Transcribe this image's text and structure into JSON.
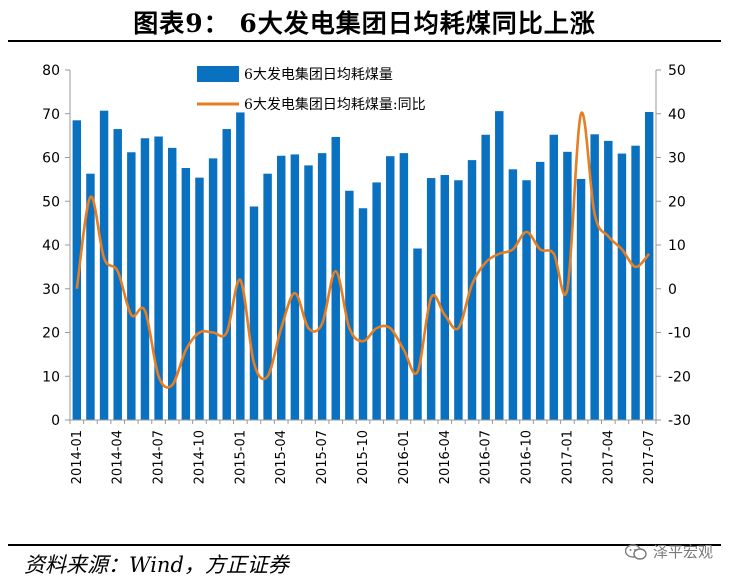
{
  "title": "图表9： 6大发电集团日均耗煤同比上涨",
  "source": "资料来源：Wind，方正证券",
  "watermark": "泽平宏观",
  "colors": {
    "bar": "#0a70c0",
    "line": "#e67e22",
    "axis": "#999999"
  },
  "chart_data": {
    "type": "bar",
    "title": "图表9： 6大发电集团日均耗煤同比上涨",
    "categories": [
      "2014-01",
      "2014-02",
      "2014-03",
      "2014-04",
      "2014-05",
      "2014-06",
      "2014-07",
      "2014-08",
      "2014-09",
      "2014-10",
      "2014-11",
      "2014-12",
      "2015-01",
      "2015-02",
      "2015-03",
      "2015-04",
      "2015-05",
      "2015-06",
      "2015-07",
      "2015-08",
      "2015-09",
      "2015-10",
      "2015-11",
      "2015-12",
      "2016-01",
      "2016-02",
      "2016-03",
      "2016-04",
      "2016-05",
      "2016-06",
      "2016-07",
      "2016-08",
      "2016-09",
      "2016-10",
      "2016-11",
      "2016-12",
      "2017-01",
      "2017-02",
      "2017-03",
      "2017-04",
      "2017-05",
      "2017-06",
      "2017-07"
    ],
    "x_tick_labels": [
      "2014-01",
      "2014-04",
      "2014-07",
      "2014-10",
      "2015-01",
      "2015-04",
      "2015-07",
      "2015-10",
      "2016-01",
      "2016-04",
      "2016-07",
      "2016-10",
      "2017-01",
      "2017-04",
      "2017-07"
    ],
    "series": [
      {
        "name": "6大发电集团日均耗煤量",
        "type": "bar",
        "axis": "left",
        "values": [
          68.5,
          56.3,
          70.7,
          66.5,
          61.2,
          64.4,
          64.8,
          62.2,
          57.6,
          55.4,
          59.8,
          66.5,
          70.3,
          48.8,
          56.3,
          60.4,
          60.7,
          58.2,
          61.0,
          64.7,
          52.4,
          48.4,
          54.3,
          60.3,
          61.0,
          39.2,
          55.3,
          56.0,
          54.8,
          59.4,
          65.2,
          70.6,
          57.3,
          54.8,
          59.0,
          65.2,
          61.3,
          55.1,
          65.3,
          63.8,
          60.9,
          62.7,
          70.4
        ]
      },
      {
        "name": "6大发电集团日均耗煤量:同比",
        "type": "line",
        "axis": "right",
        "values": [
          0,
          21,
          7,
          4,
          -6,
          -5,
          -20,
          -22,
          -14,
          -10,
          -10,
          -10,
          2,
          -17,
          -20,
          -9,
          -1,
          -9,
          -8,
          4,
          -9,
          -12,
          -9,
          -9,
          -14,
          -19,
          -2,
          -6,
          -9,
          1,
          6,
          8,
          9,
          13,
          9,
          8,
          0,
          40,
          17,
          12,
          9,
          5,
          8
        ]
      }
    ],
    "y_left": {
      "min": 0,
      "max": 80,
      "ticks": [
        0,
        10,
        20,
        30,
        40,
        50,
        60,
        70,
        80
      ]
    },
    "y_right": {
      "min": -30,
      "max": 50,
      "ticks": [
        -30,
        -20,
        -10,
        0,
        10,
        20,
        30,
        40,
        50
      ]
    },
    "legend_position": "top-center",
    "grid": false
  }
}
